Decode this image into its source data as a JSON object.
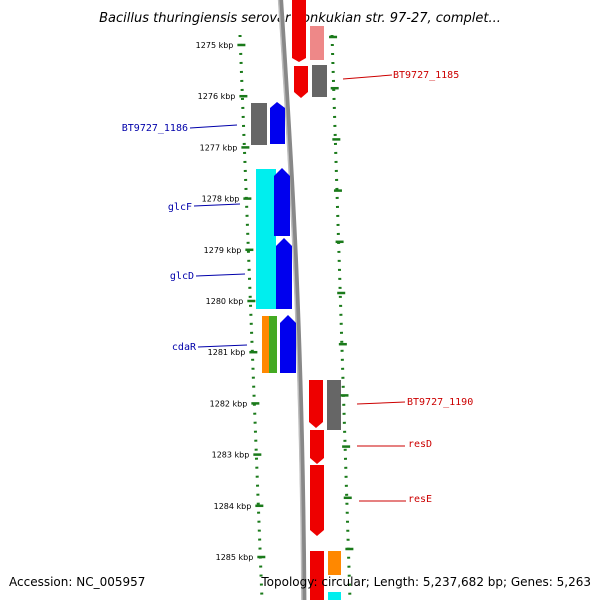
{
  "title": "Bacillus thuringiensis serovar konkukian str. 97-27, complet...",
  "footer": {
    "accession": "Accession: NC_005957",
    "topology": "Topology: circular; Length: 5,237,682 bp; Genes: 5,263"
  },
  "ticks": [
    {
      "label": "1275 kbp",
      "kbp": 1275
    },
    {
      "label": "1276 kbp",
      "kbp": 1276
    },
    {
      "label": "1277 kbp",
      "kbp": 1277
    },
    {
      "label": "1278 kbp",
      "kbp": 1278
    },
    {
      "label": "1279 kbp",
      "kbp": 1279
    },
    {
      "label": "1280 kbp",
      "kbp": 1280
    },
    {
      "label": "1281 kbp",
      "kbp": 1281
    },
    {
      "label": "1282 kbp",
      "kbp": 1282
    },
    {
      "label": "1283 kbp",
      "kbp": 1283
    },
    {
      "label": "1284 kbp",
      "kbp": 1284
    },
    {
      "label": "1285 kbp",
      "kbp": 1285
    }
  ],
  "gene_labels": [
    {
      "name": "BT9727_1185",
      "strand": "reverse"
    },
    {
      "name": "BT9727_1186",
      "strand": "forward"
    },
    {
      "name": "glcF",
      "strand": "forward"
    },
    {
      "name": "glcD",
      "strand": "forward"
    },
    {
      "name": "cdaR",
      "strand": "forward"
    },
    {
      "name": "BT9727_1190",
      "strand": "reverse"
    },
    {
      "name": "resD",
      "strand": "reverse"
    },
    {
      "name": "resE",
      "strand": "reverse"
    }
  ],
  "colors": {
    "forward_label": "#0000aa",
    "reverse_label": "#cc0000",
    "tick_marks": "#1a7a1a",
    "backbone": "#888888",
    "cds_forward": "#0000ee",
    "cds_reverse": "#ee0000",
    "cds_reverse_light": "#ee8888",
    "gene_gray": "#666666",
    "gene_cyan": "#00eeee",
    "gene_orange": "#ff8800",
    "gene_green": "#44aa22"
  }
}
